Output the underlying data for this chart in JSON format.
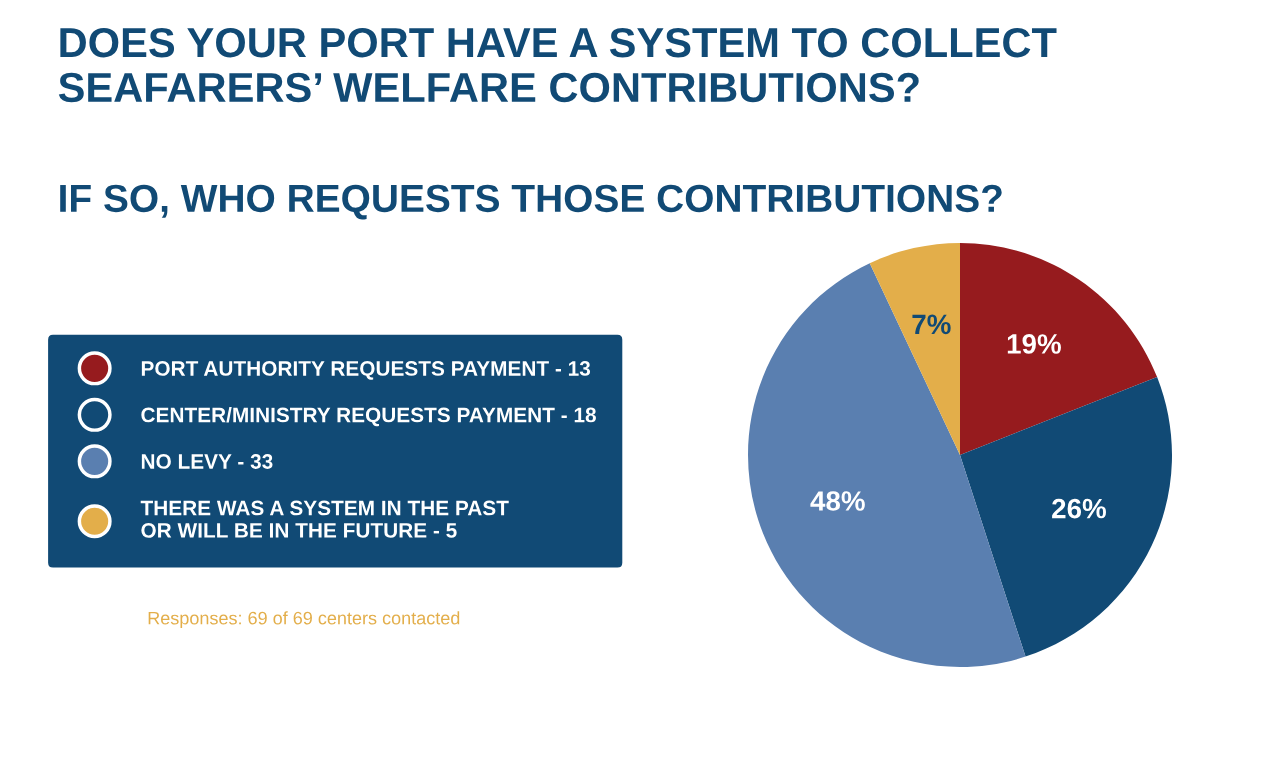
{
  "chart_data": {
    "type": "pie",
    "title": "DOES YOUR PORT HAVE A SYSTEM TO COLLECT SEAFARERS’ WELFARE CONTRIBUTIONS?",
    "subtitle": "IF SO, WHO REQUESTS THOSE CONTRIBUTIONS?",
    "categories": [
      "PORT AUTHORITY REQUESTS PAYMENT - 13",
      "CENTER/MINISTRY REQUESTS PAYMENT - 18",
      "NO LEVY - 33",
      "THERE WAS A SYSTEM IN THE PAST\nOR WILL BE IN THE FUTURE - 5"
    ],
    "values": [
      19,
      26,
      48,
      7
    ],
    "colors": [
      "#961b1e",
      "#114a75",
      "#5a7fb0",
      "#e3ae4a"
    ],
    "value_labels": [
      "19%",
      "26%",
      "48%",
      "7%"
    ],
    "legend": "left",
    "annotations": [
      "Responses: 69 of 69 centers contacted"
    ]
  }
}
